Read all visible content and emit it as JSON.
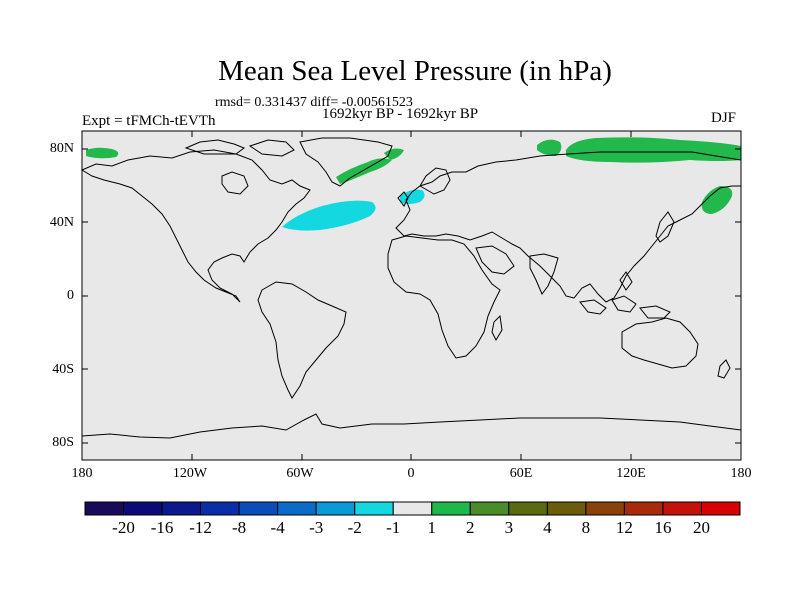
{
  "title": "Mean Sea Level Pressure (in hPa)",
  "stats": "rmsd= 0.331437 diff= -0.00561523",
  "period": "1692kyr BP - 1692kyr BP",
  "experiment": "Expt = tFMCh-tEVTh",
  "season": "DJF",
  "lat_labels": [
    "80N",
    "40N",
    "0",
    "40S",
    "80S"
  ],
  "lon_labels": [
    "180",
    "120W",
    "60W",
    "0",
    "60E",
    "120E",
    "180"
  ],
  "colorbar": {
    "labels": [
      "-20",
      "-16",
      "-12",
      "-8",
      "-4",
      "-3",
      "-2",
      "-1",
      "1",
      "2",
      "3",
      "4",
      "8",
      "12",
      "16",
      "20"
    ],
    "colors": [
      "#1a0a5a",
      "#0c0a78",
      "#0a1a8c",
      "#0a2ea8",
      "#0a4cba",
      "#0a6cc8",
      "#0a9ad8",
      "#14d8e0",
      "#e8e8e8",
      "#1eb84a",
      "#4a8c28",
      "#5a6a10",
      "#6a5c0a",
      "#8a420a",
      "#a82a0a",
      "#c4120a",
      "#d80000"
    ]
  },
  "colors": {
    "ocean": "#e8e8e8",
    "positive_anomaly": "#22b84c",
    "negative_anomaly": "#14d8e0",
    "coast": "#000000"
  }
}
